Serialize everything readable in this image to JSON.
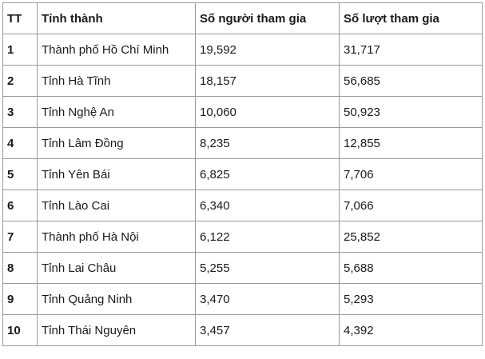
{
  "table": {
    "headers": [
      "TT",
      "Tỉnh thành",
      "Số người tham gia",
      "Số lượt tham gia"
    ],
    "rows": [
      {
        "tt": "1",
        "province": "Thành phố Hồ Chí Minh",
        "participants": "19,592",
        "entries": "31,717"
      },
      {
        "tt": "2",
        "province": "Tỉnh Hà Tĩnh",
        "participants": "18,157",
        "entries": "56,685"
      },
      {
        "tt": "3",
        "province": "Tỉnh Nghệ An",
        "participants": "10,060",
        "entries": "50,923"
      },
      {
        "tt": "4",
        "province": "Tỉnh Lâm Đồng",
        "participants": "8,235",
        "entries": "12,855"
      },
      {
        "tt": "5",
        "province": "Tỉnh Yên Bái",
        "participants": "6,825",
        "entries": "7,706"
      },
      {
        "tt": "6",
        "province": "Tỉnh Lào Cai",
        "participants": "6,340",
        "entries": "7,066"
      },
      {
        "tt": "7",
        "province": "Thành phố Hà Nội",
        "participants": "6,122",
        "entries": "25,852"
      },
      {
        "tt": "8",
        "province": "Tỉnh Lai Châu",
        "participants": "5,255",
        "entries": "5,688"
      },
      {
        "tt": "9",
        "province": "Tỉnh Quảng Ninh",
        "participants": "3,470",
        "entries": "5,293"
      },
      {
        "tt": "10",
        "province": "Tỉnh Thái Nguyên",
        "participants": "3,457",
        "entries": "4,392"
      }
    ]
  }
}
